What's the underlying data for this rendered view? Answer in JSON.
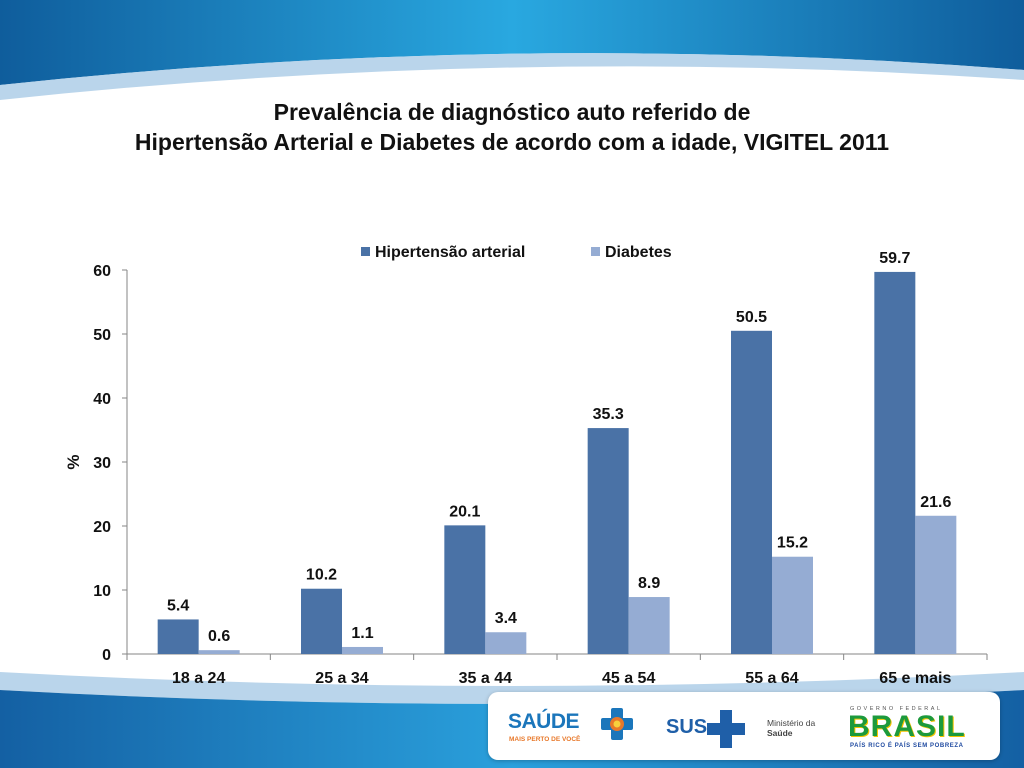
{
  "title": {
    "line1": "Prevalência de diagnóstico auto referido de",
    "line2": "Hipertensão Arterial e Diabetes de acordo com a idade, VIGITEL 2011"
  },
  "chart_data": {
    "type": "bar",
    "categories": [
      "18 a 24",
      "25 a 34",
      "35 a 44",
      "45 a 54",
      "55 a 64",
      "65 e mais"
    ],
    "series": [
      {
        "name": "Hipertensão arterial",
        "values": [
          5.4,
          10.2,
          20.1,
          35.3,
          50.5,
          59.7
        ],
        "color": "#4a72a6",
        "labels": [
          "5.4",
          "10.2",
          "20.1",
          "35.3",
          "50.5",
          "59.7"
        ]
      },
      {
        "name": "Diabetes",
        "values": [
          0.6,
          1.1,
          3.4,
          8.9,
          15.2,
          21.6
        ],
        "color": "#95acd3",
        "labels": [
          "0.6",
          "1.1",
          "3.4",
          "8.9",
          "15.2",
          "21.6"
        ]
      }
    ],
    "ylabel": "%",
    "xlabel": "",
    "ylim": [
      0,
      60
    ],
    "yticks": [
      "0",
      "10",
      "20",
      "30",
      "40",
      "50",
      "60"
    ],
    "grid": false,
    "legend_position": "top"
  },
  "logos": {
    "saude": "SAÚDE",
    "saude_tagline": "MAIS PERTO DE VOCÊ",
    "sus": "SUS",
    "ministerio_line1": "Ministério da",
    "ministerio_line2": "Saúde",
    "gov_header": "GOVERNO FEDERAL",
    "brasil": "BRASIL",
    "brasil_tagline": "PAÍS RICO É PAÍS SEM POBREZA"
  },
  "colors": {
    "header_blue": "#1e88c8",
    "footer_blue": "#1b6fae",
    "hipertensao": "#4a72a6",
    "diabetes": "#95acd3"
  }
}
